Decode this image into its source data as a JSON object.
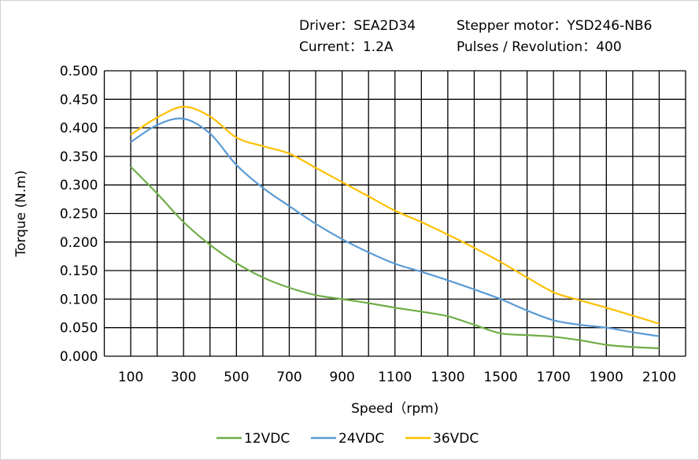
{
  "header": {
    "driver": "Driver：SEA2D34",
    "motor": "Stepper  motor：YSD246-NB6",
    "current": "Current：1.2A",
    "pulses": "Pulses / Revolution：400"
  },
  "chart_data": {
    "type": "line",
    "title": "",
    "xlabel": "Speed（rpm)",
    "ylabel": "Torque (N.m)",
    "xlim": [
      0,
      2200
    ],
    "ylim": [
      0,
      0.5
    ],
    "grid": true,
    "legend_position": "bottom",
    "x_ticks": [
      "100",
      "300",
      "500",
      "700",
      "900",
      "1100",
      "1300",
      "1500",
      "1700",
      "1900",
      "2100"
    ],
    "y_ticks": [
      "0.000",
      "0.050",
      "0.100",
      "0.150",
      "0.200",
      "0.250",
      "0.300",
      "0.350",
      "0.400",
      "0.450",
      "0.500"
    ],
    "x": [
      100,
      200,
      300,
      400,
      500,
      600,
      700,
      800,
      900,
      1000,
      1100,
      1200,
      1300,
      1400,
      1500,
      1600,
      1700,
      1800,
      1900,
      2000,
      2100
    ],
    "series": [
      {
        "name": "12VDC",
        "color": "#70ad47",
        "values": [
          0.332,
          0.285,
          0.235,
          0.195,
          0.163,
          0.138,
          0.12,
          0.107,
          0.1,
          0.093,
          0.085,
          0.078,
          0.07,
          0.055,
          0.04,
          0.037,
          0.034,
          0.028,
          0.02,
          0.016,
          0.014
        ]
      },
      {
        "name": "24VDC",
        "color": "#5b9bd5",
        "values": [
          0.375,
          0.405,
          0.416,
          0.39,
          0.335,
          0.295,
          0.263,
          0.232,
          0.205,
          0.182,
          0.162,
          0.148,
          0.133,
          0.117,
          0.1,
          0.08,
          0.063,
          0.055,
          0.05,
          0.042,
          0.035
        ]
      },
      {
        "name": "36VDC",
        "color": "#ffc000",
        "values": [
          0.388,
          0.418,
          0.437,
          0.42,
          0.383,
          0.368,
          0.355,
          0.33,
          0.305,
          0.28,
          0.255,
          0.235,
          0.213,
          0.19,
          0.165,
          0.138,
          0.112,
          0.098,
          0.085,
          0.071,
          0.057
        ]
      }
    ]
  }
}
